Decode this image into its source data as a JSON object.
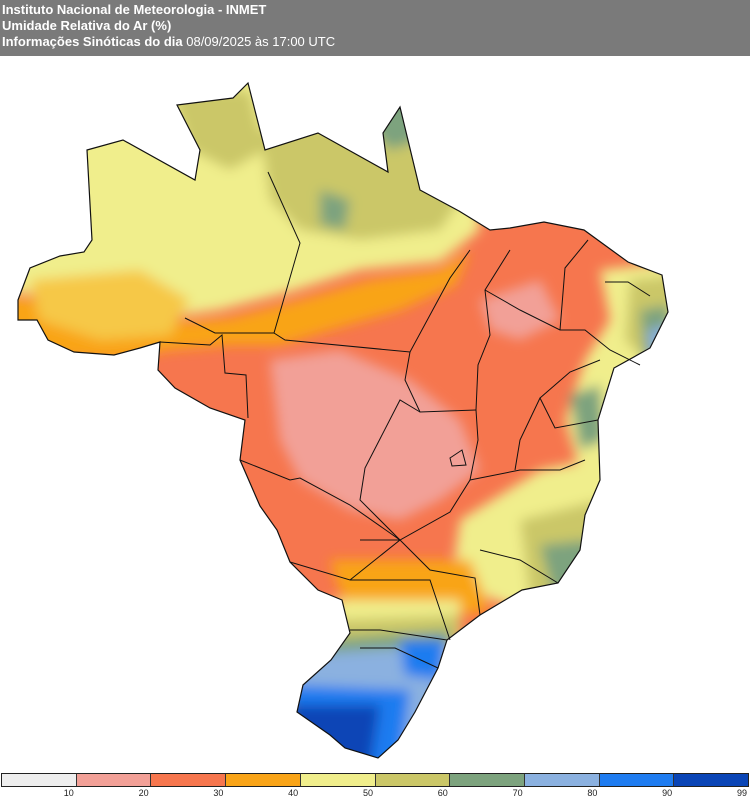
{
  "header": {
    "line1": "Instituto Nacional de Meteorologia - INMET",
    "line2": "Umidade Relativa do Ar (%)",
    "line3_label": "Informações Sinóticas do dia",
    "line3_date": "08/09/2025 às 17:00 UTC"
  },
  "map": {
    "variable": "Umidade Relativa do Ar (%)",
    "region": "Brasil",
    "zones": [
      {
        "name": "north-amazon",
        "class": "50-60"
      },
      {
        "name": "far-north-northeast",
        "class": "60-70"
      },
      {
        "name": "central-west",
        "class": "10-20"
      },
      {
        "name": "northeast-interior",
        "class": "20-30"
      },
      {
        "name": "northeast-coast",
        "class": "70-80"
      },
      {
        "name": "south",
        "class": "80-90"
      },
      {
        "name": "far-south",
        "class": "90-99"
      }
    ]
  },
  "legend": {
    "ticks": [
      "10",
      "20",
      "30",
      "40",
      "50",
      "60",
      "70",
      "80",
      "90",
      "99"
    ],
    "colors": [
      "#eeeeee",
      "#f2a097",
      "#f6764e",
      "#f9a418",
      "#f0ee8c",
      "#cbc768",
      "#7da37e",
      "#8bb1e0",
      "#1f7cf0",
      "#0a45b6"
    ]
  }
}
